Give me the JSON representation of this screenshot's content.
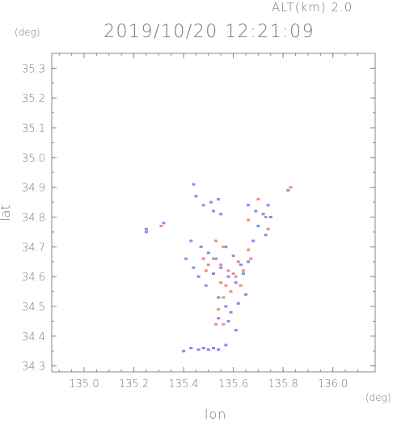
{
  "header": {
    "alt_label": "ALT(km) 2.0",
    "timestamp": "2019/10/20 12:21:09"
  },
  "chart_data": {
    "type": "scatter",
    "title": "2019/10/20 12:21:09",
    "subtitle": "ALT(km) 2.0",
    "xlabel": "lon",
    "ylabel": "lat",
    "x_unit": "(deg)",
    "y_unit": "(deg)",
    "xlim": [
      134.87,
      136.17
    ],
    "ylim": [
      34.28,
      35.35
    ],
    "x_ticks": [
      135.0,
      135.2,
      135.4,
      135.6,
      135.8,
      136.0
    ],
    "x_tick_labels": [
      "135.0",
      "135.2",
      "135.4",
      "135.6",
      "135.8",
      "136.0"
    ],
    "y_ticks": [
      34.3,
      34.4,
      34.5,
      34.6,
      34.7,
      34.8,
      34.9,
      35.0,
      35.1,
      35.2,
      35.3
    ],
    "y_tick_labels": [
      "34.3",
      "34.4",
      "34.5",
      "34.6",
      "34.7",
      "34.8",
      "34.9",
      "35.0",
      "35.1",
      "35.2",
      "35.3"
    ],
    "grid": false,
    "colors": {
      "positive": "#f08a8a",
      "negative": "#8a8af0",
      "axis": "#888888"
    },
    "series": [
      {
        "color": "#8a8af0",
        "points": [
          [
            135.25,
            34.76
          ],
          [
            135.25,
            34.75
          ],
          [
            135.32,
            34.78
          ],
          [
            135.45,
            34.87
          ],
          [
            135.48,
            34.84
          ],
          [
            135.51,
            34.85
          ],
          [
            135.54,
            34.86
          ],
          [
            135.55,
            34.81
          ],
          [
            135.52,
            34.82
          ],
          [
            135.66,
            34.84
          ],
          [
            135.69,
            34.82
          ],
          [
            135.72,
            34.81
          ],
          [
            135.75,
            34.8
          ],
          [
            135.74,
            34.84
          ],
          [
            135.82,
            34.89
          ],
          [
            135.44,
            34.91
          ],
          [
            135.43,
            34.72
          ],
          [
            135.47,
            34.7
          ],
          [
            135.5,
            34.68
          ],
          [
            135.53,
            34.66
          ],
          [
            135.57,
            34.7
          ],
          [
            135.6,
            34.67
          ],
          [
            135.63,
            34.64
          ],
          [
            135.66,
            34.65
          ],
          [
            135.44,
            34.63
          ],
          [
            135.46,
            34.6
          ],
          [
            135.49,
            34.57
          ],
          [
            135.52,
            34.61
          ],
          [
            135.55,
            34.63
          ],
          [
            135.58,
            34.6
          ],
          [
            135.61,
            34.58
          ],
          [
            135.64,
            34.61
          ],
          [
            135.54,
            34.53
          ],
          [
            135.57,
            34.5
          ],
          [
            135.59,
            34.48
          ],
          [
            135.54,
            34.46
          ],
          [
            135.58,
            34.45
          ],
          [
            135.61,
            34.42
          ],
          [
            135.62,
            34.51
          ],
          [
            135.65,
            34.54
          ],
          [
            135.4,
            34.35
          ],
          [
            135.43,
            34.36
          ],
          [
            135.46,
            34.355
          ],
          [
            135.48,
            34.36
          ],
          [
            135.5,
            34.355
          ],
          [
            135.52,
            34.36
          ],
          [
            135.54,
            34.355
          ],
          [
            135.57,
            34.37
          ],
          [
            135.7,
            34.77
          ],
          [
            135.73,
            34.74
          ],
          [
            135.68,
            34.72
          ],
          [
            135.41,
            34.66
          ]
        ]
      },
      {
        "color": "#f08a8a",
        "points": [
          [
            135.53,
            34.72
          ],
          [
            135.56,
            34.7
          ],
          [
            135.52,
            34.66
          ],
          [
            135.55,
            34.64
          ],
          [
            135.58,
            34.62
          ],
          [
            135.61,
            34.6
          ],
          [
            135.64,
            34.62
          ],
          [
            135.67,
            34.66
          ],
          [
            135.66,
            34.69
          ],
          [
            135.62,
            34.65
          ],
          [
            135.6,
            34.61
          ],
          [
            135.57,
            34.57
          ],
          [
            135.55,
            34.58
          ],
          [
            135.5,
            34.64
          ],
          [
            135.48,
            34.66
          ],
          [
            135.59,
            34.55
          ],
          [
            135.56,
            34.53
          ],
          [
            135.53,
            34.44
          ],
          [
            135.56,
            34.44
          ],
          [
            135.83,
            34.9
          ],
          [
            135.7,
            34.86
          ],
          [
            135.73,
            34.8
          ],
          [
            135.66,
            34.79
          ],
          [
            135.74,
            34.76
          ],
          [
            135.31,
            34.77
          ],
          [
            135.63,
            34.57
          ],
          [
            135.54,
            34.49
          ],
          [
            135.49,
            34.62
          ]
        ]
      }
    ]
  }
}
